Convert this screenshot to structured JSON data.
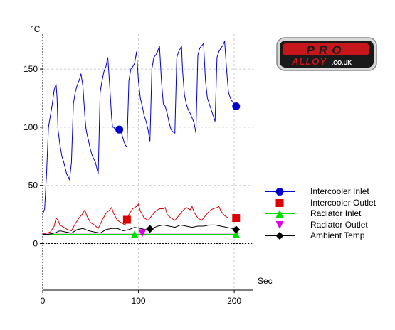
{
  "logo": {
    "top_word": "PRO",
    "bottom_word": "ALLOY",
    "suffix": ".CO.UK"
  },
  "chart_data": {
    "type": "line",
    "ylabel": "°C",
    "xlabel": "Sec",
    "xlim": [
      0,
      220
    ],
    "ylim": [
      -40,
      180
    ],
    "xticks": [
      0,
      100,
      200
    ],
    "yticks": [
      0,
      50,
      100,
      150
    ],
    "grid": true,
    "legend_position": "right",
    "series": [
      {
        "name": "Intercooler Inlet",
        "color": "#0000cc",
        "marker": "circle",
        "marker_x": [
          202,
          80
        ],
        "x": [
          0,
          2,
          4,
          6,
          8,
          10,
          12,
          14,
          15,
          16,
          18,
          20,
          22,
          25,
          28,
          30,
          32,
          34,
          36,
          38,
          40,
          42,
          44,
          45,
          46,
          48,
          50,
          52,
          55,
          58,
          60,
          62,
          64,
          66,
          68,
          70,
          72,
          73,
          74,
          76,
          78,
          80,
          82,
          84,
          86,
          88,
          90,
          92,
          94,
          96,
          98,
          100,
          102,
          104,
          106,
          108,
          110,
          112,
          114,
          116,
          118,
          120,
          122,
          124,
          126,
          128,
          130,
          132,
          134,
          136,
          138,
          140,
          142,
          144,
          145,
          146,
          148,
          150,
          152,
          154,
          156,
          158,
          160,
          162,
          164,
          166,
          168,
          170,
          172,
          174,
          176,
          178,
          180,
          182,
          184,
          186,
          188,
          190,
          192,
          194,
          196,
          198,
          200,
          202
        ],
        "y": [
          25,
          30,
          60,
          100,
          110,
          120,
          132,
          137,
          125,
          98,
          85,
          75,
          70,
          60,
          55,
          70,
          120,
          130,
          136,
          140,
          146,
          135,
          110,
          100,
          95,
          88,
          80,
          75,
          70,
          60,
          130,
          140,
          148,
          152,
          160,
          135,
          108,
          100,
          100,
          98,
          95,
          98,
          96,
          90,
          85,
          83,
          140,
          150,
          152,
          155,
          165,
          140,
          125,
          118,
          110,
          105,
          98,
          88,
          150,
          160,
          162,
          165,
          170,
          140,
          120,
          118,
          112,
          104,
          98,
          96,
          95,
          160,
          165,
          168,
          170,
          150,
          128,
          120,
          115,
          112,
          108,
          104,
          95,
          162,
          168,
          170,
          172,
          140,
          125,
          120,
          115,
          110,
          105,
          160,
          165,
          168,
          170,
          174,
          150,
          130,
          125,
          122,
          120,
          118
        ]
      },
      {
        "name": "Intercooler Outlet",
        "color": "#dd0000",
        "marker": "square",
        "marker_x": [
          202,
          88
        ],
        "x": [
          0,
          4,
          8,
          12,
          14,
          16,
          18,
          22,
          26,
          30,
          34,
          38,
          42,
          44,
          46,
          50,
          54,
          58,
          62,
          66,
          70,
          72,
          74,
          78,
          82,
          86,
          90,
          94,
          98,
          100,
          102,
          106,
          110,
          114,
          118,
          122,
          126,
          128,
          130,
          134,
          138,
          142,
          146,
          150,
          154,
          156,
          158,
          162,
          166,
          170,
          174,
          178,
          182,
          184,
          186,
          190,
          194,
          198,
          202
        ],
        "y": [
          8,
          9,
          10,
          15,
          22,
          20,
          16,
          14,
          12,
          11,
          17,
          22,
          26,
          29,
          24,
          18,
          16,
          13,
          20,
          26,
          29,
          31,
          26,
          20,
          18,
          16,
          25,
          30,
          32,
          34,
          28,
          22,
          20,
          24,
          28,
          30,
          30,
          31,
          25,
          22,
          20,
          24,
          28,
          31,
          29,
          32,
          27,
          22,
          20,
          24,
          28,
          30,
          31,
          32,
          28,
          24,
          22,
          22,
          22
        ]
      },
      {
        "name": "Radiator Inlet",
        "color": "#00dd00",
        "marker": "triangle-up",
        "marker_x": [
          202,
          96
        ],
        "x": [
          0,
          50,
          100,
          150,
          202
        ],
        "y": [
          8,
          8,
          8,
          8,
          8
        ]
      },
      {
        "name": "Radiator Outlet",
        "color": "#dd00dd",
        "marker": "triangle-down",
        "marker_x": [
          104
        ],
        "x": [
          0,
          50,
          100,
          150,
          202
        ],
        "y": [
          9,
          9,
          9,
          9,
          9
        ]
      },
      {
        "name": "Ambient Temp",
        "color": "#000000",
        "marker": "diamond",
        "marker_x": [
          202,
          112
        ],
        "x": [
          0,
          6,
          12,
          18,
          24,
          30,
          36,
          42,
          48,
          54,
          60,
          66,
          72,
          78,
          84,
          90,
          96,
          102,
          108,
          114,
          120,
          126,
          132,
          138,
          144,
          150,
          156,
          162,
          168,
          174,
          180,
          186,
          192,
          198,
          202
        ],
        "y": [
          8,
          8,
          9,
          11,
          10,
          9,
          12,
          13,
          11,
          10,
          9,
          12,
          13,
          13,
          11,
          12,
          14,
          13,
          12,
          13,
          15,
          16,
          15,
          14,
          16,
          15,
          14,
          15,
          15,
          16,
          16,
          15,
          14,
          13,
          12
        ]
      }
    ]
  }
}
